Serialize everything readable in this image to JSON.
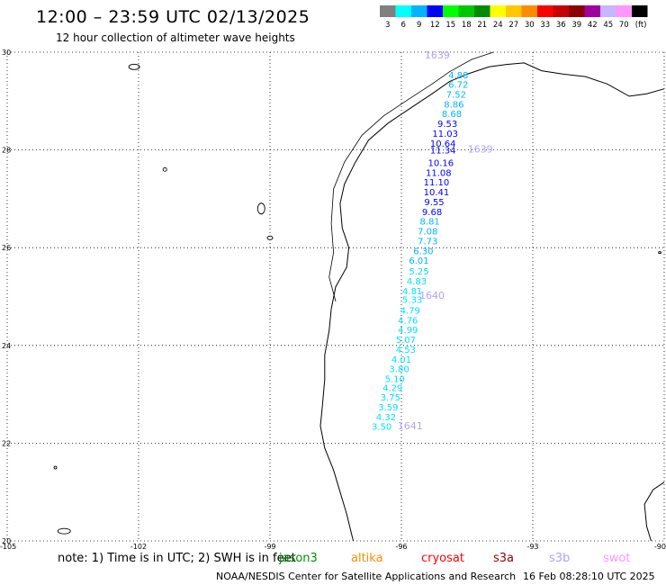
{
  "header": {
    "title": "12:00 – 23:59 UTC 02/13/2025",
    "subtitle": "12 hour collection of altimeter wave heights"
  },
  "legend": {
    "unit": "(ft)",
    "bins": [
      {
        "label": "3",
        "color": "#808080"
      },
      {
        "label": "6",
        "color": "#00ffff"
      },
      {
        "label": "9",
        "color": "#00b4ff"
      },
      {
        "label": "12",
        "color": "#0000ff"
      },
      {
        "label": "15",
        "color": "#00ff00"
      },
      {
        "label": "18",
        "color": "#00c800"
      },
      {
        "label": "21",
        "color": "#008c00"
      },
      {
        "label": "24",
        "color": "#ffff00"
      },
      {
        "label": "27",
        "color": "#ffc800"
      },
      {
        "label": "30",
        "color": "#ff8c00"
      },
      {
        "label": "33",
        "color": "#ff0000"
      },
      {
        "label": "36",
        "color": "#c80000"
      },
      {
        "label": "39",
        "color": "#8c0000"
      },
      {
        "label": "42",
        "color": "#a000a0"
      },
      {
        "label": "45",
        "color": "#c8b4ff"
      },
      {
        "label": "70",
        "color": "#ff96ff"
      },
      {
        "label": "",
        "color": "#000000"
      }
    ]
  },
  "map": {
    "lon_min": -105,
    "lon_max": -90,
    "lat_min": 20,
    "lat_max": 30,
    "lat_ticks": [
      "20",
      "22",
      "24",
      "26",
      "28",
      "30"
    ],
    "lon_ticks": [
      "-105",
      "-102",
      "-99",
      "-96",
      "-93",
      "-90"
    ],
    "grid": true
  },
  "chart_data": {
    "type": "scatter",
    "x_axis": "longitude",
    "y_axis": "latitude",
    "series": [
      {
        "name": "",
        "points": [
          {
            "lon": -94.7,
            "lat": 29.47,
            "label": "4.88",
            "color": "#00b4ff"
          },
          {
            "lon": -94.7,
            "lat": 29.27,
            "label": "6.72",
            "color": "#00b4ff"
          },
          {
            "lon": -94.75,
            "lat": 29.07,
            "label": "7.52",
            "color": "#00b4ff"
          },
          {
            "lon": -94.8,
            "lat": 28.87,
            "label": "8.86",
            "color": "#00b4ff"
          },
          {
            "lon": -94.85,
            "lat": 28.67,
            "label": "8.68",
            "color": "#00b4ff"
          },
          {
            "lon": -94.95,
            "lat": 28.47,
            "label": "9.53",
            "color": "#0000ff"
          },
          {
            "lon": -95.0,
            "lat": 28.27,
            "label": "11.03",
            "color": "#0000ff"
          },
          {
            "lon": -95.05,
            "lat": 28.07,
            "label": "10.64",
            "color": "#0000ff"
          },
          {
            "lon": -95.05,
            "lat": 27.93,
            "label": "11.34",
            "color": "#0000ff"
          },
          {
            "lon": -95.1,
            "lat": 27.67,
            "label": "10.16",
            "color": "#0000ff"
          },
          {
            "lon": -95.15,
            "lat": 27.47,
            "label": "11.08",
            "color": "#0000ff"
          },
          {
            "lon": -95.2,
            "lat": 27.27,
            "label": "11.10",
            "color": "#0000ff"
          },
          {
            "lon": -95.2,
            "lat": 27.07,
            "label": "10.41",
            "color": "#0000ff"
          },
          {
            "lon": -95.25,
            "lat": 26.87,
            "label": "9.55",
            "color": "#0000ff"
          },
          {
            "lon": -95.3,
            "lat": 26.67,
            "label": "9.68",
            "color": "#0000ff"
          },
          {
            "lon": -95.35,
            "lat": 26.47,
            "label": "8.81",
            "color": "#00b4ff"
          },
          {
            "lon": -95.4,
            "lat": 26.27,
            "label": "7.08",
            "color": "#00b4ff"
          },
          {
            "lon": -95.4,
            "lat": 26.07,
            "label": "7.73",
            "color": "#00b4ff"
          },
          {
            "lon": -95.5,
            "lat": 25.87,
            "label": "6.30",
            "color": "#00b4ff"
          },
          {
            "lon": -95.6,
            "lat": 25.67,
            "label": "6.01",
            "color": "#00b4ff"
          },
          {
            "lon": -95.6,
            "lat": 25.45,
            "label": "5.25",
            "color": "#00e0ff"
          },
          {
            "lon": -95.65,
            "lat": 25.25,
            "label": "4.83",
            "color": "#00e0ff"
          },
          {
            "lon": -95.75,
            "lat": 25.05,
            "label": "4.81",
            "color": "#00e0ff"
          },
          {
            "lon": -95.75,
            "lat": 24.87,
            "label": "5.33",
            "color": "#00e0ff"
          },
          {
            "lon": -95.8,
            "lat": 24.65,
            "label": "4.79",
            "color": "#00e0ff"
          },
          {
            "lon": -95.85,
            "lat": 24.45,
            "label": "4.76",
            "color": "#00e0ff"
          },
          {
            "lon": -95.85,
            "lat": 24.25,
            "label": "4.99",
            "color": "#00e0ff"
          },
          {
            "lon": -95.9,
            "lat": 24.05,
            "label": "5.07",
            "color": "#00e0ff"
          },
          {
            "lon": -95.9,
            "lat": 23.85,
            "label": "4.53",
            "color": "#00e0ff"
          },
          {
            "lon": -96.0,
            "lat": 23.65,
            "label": "4.01",
            "color": "#00e0ff"
          },
          {
            "lon": -96.05,
            "lat": 23.45,
            "label": "3.80",
            "color": "#00e0ff"
          },
          {
            "lon": -96.15,
            "lat": 23.25,
            "label": "5.10",
            "color": "#00e0ff"
          },
          {
            "lon": -96.2,
            "lat": 23.07,
            "label": "4.29",
            "color": "#00e0ff"
          },
          {
            "lon": -96.25,
            "lat": 22.87,
            "label": "3.75",
            "color": "#00e0ff"
          },
          {
            "lon": -96.3,
            "lat": 22.67,
            "label": "3.59",
            "color": "#00e0ff"
          },
          {
            "lon": -96.35,
            "lat": 22.47,
            "label": "4.32",
            "color": "#00e0ff"
          },
          {
            "lon": -96.45,
            "lat": 22.27,
            "label": "3.50",
            "color": "#00e0ff"
          }
        ]
      }
    ],
    "pass_labels": [
      {
        "lon": -95.18,
        "lat": 29.87,
        "label": "1639"
      },
      {
        "lon": -94.2,
        "lat": 27.95,
        "label": "1639"
      },
      {
        "lon": -95.3,
        "lat": 24.95,
        "label": "1640"
      },
      {
        "lon": -95.8,
        "lat": 22.28,
        "label": "1641"
      }
    ]
  },
  "note": {
    "prefix": "note: 1) Time is in UTC; 2) SWH is in feet",
    "satellites": [
      {
        "name": "jason3",
        "color": "#008c00"
      },
      {
        "name": "altika",
        "color": "#ff8c00"
      },
      {
        "name": "cryosat",
        "color": "#ff0000"
      },
      {
        "name": "s3a",
        "color": "#8c0000"
      },
      {
        "name": "s3b",
        "color": "#b4a0ff"
      },
      {
        "name": "swot",
        "color": "#ff96ff"
      }
    ]
  },
  "footer": {
    "credit": "NOAA/NESDIS Center for Satellite Applications and Research",
    "timestamp": "16 Feb 08:28:10 UTC 2025"
  }
}
